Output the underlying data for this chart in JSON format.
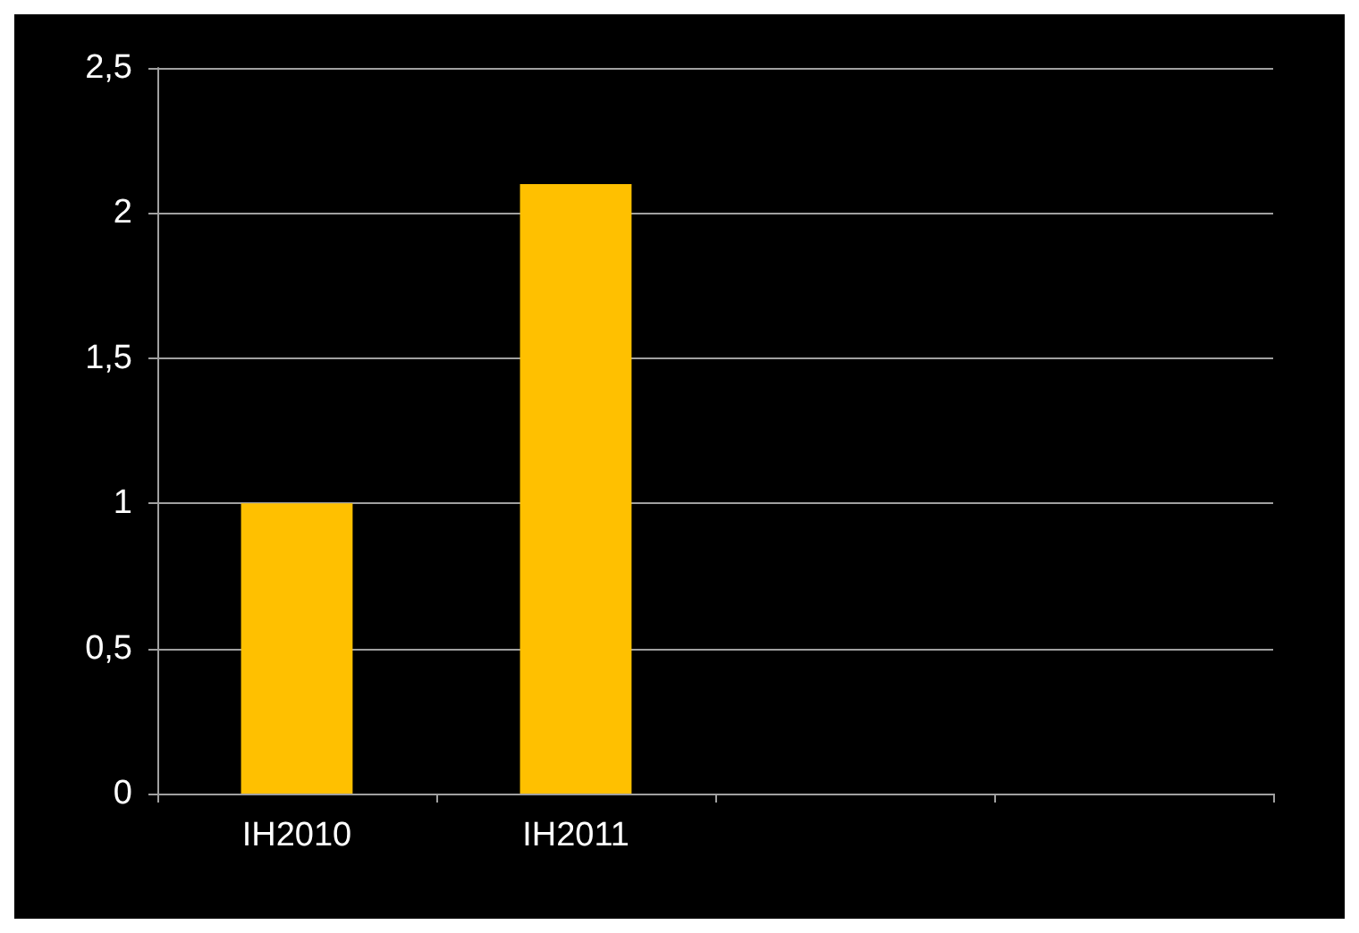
{
  "chart_data": {
    "type": "bar",
    "categories": [
      "IH2010",
      "IH2011",
      null,
      null
    ],
    "values": [
      1,
      2.1,
      null,
      null
    ],
    "color": "#ffc000",
    "ylim": [
      0,
      2.5
    ],
    "yticks": [
      0,
      {
        "value": 0.5,
        "label": "0,5"
      },
      1,
      {
        "value": 1.5,
        "label": "1,5"
      },
      2,
      {
        "value": 2.5,
        "label": "2,5"
      }
    ],
    "grid": "y"
  }
}
